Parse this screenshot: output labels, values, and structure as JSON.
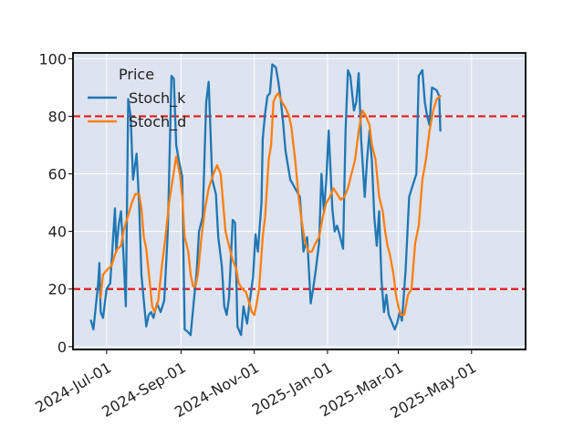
{
  "chart_data": {
    "type": "line",
    "title": "",
    "xlabel": "",
    "ylabel": "",
    "ylim": [
      -1,
      102
    ],
    "xlim": [
      "2024-06-03",
      "2025-06-15"
    ],
    "grid": true,
    "legend": {
      "title": "Price",
      "placement": "top-left"
    },
    "yticks": [
      0,
      20,
      40,
      60,
      80,
      100
    ],
    "xticks": [
      {
        "date": "2024-07-01",
        "label": "2024-Jul-01"
      },
      {
        "date": "2024-09-01",
        "label": "2024-Sep-01"
      },
      {
        "date": "2024-11-01",
        "label": "2024-Nov-01"
      },
      {
        "date": "2025-01-01",
        "label": "2025-Jan-01"
      },
      {
        "date": "2025-03-01",
        "label": "2025-Mar-01"
      },
      {
        "date": "2025-05-01",
        "label": "2025-May-01"
      }
    ],
    "reference_lines": [
      {
        "y": 80,
        "color": "#e31a1c",
        "style": "dashed"
      },
      {
        "y": 20,
        "color": "#e31a1c",
        "style": "dashed"
      }
    ],
    "series": [
      {
        "name": "Stoch_k",
        "color": "#1f77b4",
        "points": [
          [
            "2024-06-18",
            9
          ],
          [
            "2024-06-20",
            6
          ],
          [
            "2024-06-24",
            22
          ],
          [
            "2024-06-25",
            29
          ],
          [
            "2024-06-26",
            12
          ],
          [
            "2024-06-28",
            10
          ],
          [
            "2024-07-01",
            20
          ],
          [
            "2024-07-04",
            22
          ],
          [
            "2024-07-08",
            48
          ],
          [
            "2024-07-09",
            33
          ],
          [
            "2024-07-11",
            42
          ],
          [
            "2024-07-13",
            47
          ],
          [
            "2024-07-15",
            32
          ],
          [
            "2024-07-17",
            14
          ],
          [
            "2024-07-19",
            86
          ],
          [
            "2024-07-21",
            80
          ],
          [
            "2024-07-23",
            58
          ],
          [
            "2024-07-25",
            64
          ],
          [
            "2024-07-26",
            67
          ],
          [
            "2024-07-28",
            50
          ],
          [
            "2024-07-30",
            25
          ],
          [
            "2024-08-01",
            16
          ],
          [
            "2024-08-03",
            7
          ],
          [
            "2024-08-05",
            11
          ],
          [
            "2024-08-07",
            12
          ],
          [
            "2024-08-09",
            10
          ],
          [
            "2024-08-12",
            15
          ],
          [
            "2024-08-15",
            12
          ],
          [
            "2024-08-18",
            16
          ],
          [
            "2024-08-21",
            40
          ],
          [
            "2024-08-24",
            94
          ],
          [
            "2024-08-26",
            93
          ],
          [
            "2024-08-28",
            70
          ],
          [
            "2024-08-30",
            65
          ],
          [
            "2024-09-02",
            59
          ],
          [
            "2024-09-04",
            6
          ],
          [
            "2024-09-07",
            5
          ],
          [
            "2024-09-09",
            4
          ],
          [
            "2024-09-11",
            13
          ],
          [
            "2024-09-14",
            26
          ],
          [
            "2024-09-16",
            40
          ],
          [
            "2024-09-19",
            45
          ],
          [
            "2024-09-22",
            85
          ],
          [
            "2024-09-24",
            92
          ],
          [
            "2024-09-27",
            58
          ],
          [
            "2024-09-30",
            53
          ],
          [
            "2024-10-02",
            38
          ],
          [
            "2024-10-05",
            28
          ],
          [
            "2024-10-07",
            14
          ],
          [
            "2024-10-09",
            11
          ],
          [
            "2024-10-11",
            17
          ],
          [
            "2024-10-14",
            44
          ],
          [
            "2024-10-16",
            43
          ],
          [
            "2024-10-18",
            7
          ],
          [
            "2024-10-21",
            4
          ],
          [
            "2024-10-23",
            14
          ],
          [
            "2024-10-26",
            8
          ],
          [
            "2024-10-28",
            15
          ],
          [
            "2024-10-31",
            24
          ],
          [
            "2024-11-02",
            39
          ],
          [
            "2024-11-04",
            33
          ],
          [
            "2024-11-07",
            50
          ],
          [
            "2024-11-08",
            72
          ],
          [
            "2024-11-10",
            81
          ],
          [
            "2024-11-12",
            87
          ],
          [
            "2024-11-14",
            88
          ],
          [
            "2024-11-16",
            98
          ],
          [
            "2024-11-19",
            97
          ],
          [
            "2024-11-21",
            92
          ],
          [
            "2024-11-23",
            86
          ],
          [
            "2024-11-25",
            78
          ],
          [
            "2024-11-27",
            68
          ],
          [
            "2024-12-01",
            58
          ],
          [
            "2024-12-05",
            55
          ],
          [
            "2024-12-09",
            52
          ],
          [
            "2024-12-12",
            33
          ],
          [
            "2024-12-15",
            38
          ],
          [
            "2024-12-18",
            15
          ],
          [
            "2024-12-20",
            20
          ],
          [
            "2024-12-22",
            26
          ],
          [
            "2024-12-25",
            36
          ],
          [
            "2024-12-27",
            60
          ],
          [
            "2024-12-29",
            47
          ],
          [
            "2024-12-31",
            58
          ],
          [
            "2025-01-02",
            75
          ],
          [
            "2025-01-05",
            48
          ],
          [
            "2025-01-07",
            40
          ],
          [
            "2025-01-09",
            42
          ],
          [
            "2025-01-11",
            39
          ],
          [
            "2025-01-14",
            34
          ],
          [
            "2025-01-16",
            75
          ],
          [
            "2025-01-18",
            96
          ],
          [
            "2025-01-20",
            94
          ],
          [
            "2025-01-23",
            82
          ],
          [
            "2025-01-25",
            85
          ],
          [
            "2025-01-27",
            95
          ],
          [
            "2025-01-29",
            72
          ],
          [
            "2025-02-01",
            52
          ],
          [
            "2025-02-03",
            65
          ],
          [
            "2025-02-05",
            75
          ],
          [
            "2025-02-07",
            64
          ],
          [
            "2025-02-09",
            45
          ],
          [
            "2025-02-11",
            35
          ],
          [
            "2025-02-13",
            47
          ],
          [
            "2025-02-15",
            23
          ],
          [
            "2025-02-17",
            12
          ],
          [
            "2025-02-19",
            18
          ],
          [
            "2025-02-21",
            11
          ],
          [
            "2025-02-24",
            8
          ],
          [
            "2025-02-26",
            6
          ],
          [
            "2025-02-28",
            8
          ],
          [
            "2025-03-02",
            12
          ],
          [
            "2025-03-04",
            9
          ],
          [
            "2025-03-07",
            26
          ],
          [
            "2025-03-10",
            52
          ],
          [
            "2025-03-13",
            56
          ],
          [
            "2025-03-16",
            60
          ],
          [
            "2025-03-18",
            94
          ],
          [
            "2025-03-21",
            96
          ],
          [
            "2025-03-23",
            85
          ],
          [
            "2025-03-25",
            80
          ],
          [
            "2025-03-27",
            77
          ],
          [
            "2025-03-29",
            90
          ],
          [
            "2025-04-02",
            89
          ],
          [
            "2025-04-04",
            87
          ],
          [
            "2025-04-05",
            75
          ]
        ]
      },
      {
        "name": "Stoch_d",
        "color": "#ff7f0e",
        "points": [
          [
            "2024-06-26",
            17
          ],
          [
            "2024-06-28",
            25
          ],
          [
            "2024-07-02",
            27
          ],
          [
            "2024-07-05",
            28
          ],
          [
            "2024-07-08",
            32
          ],
          [
            "2024-07-10",
            34
          ],
          [
            "2024-07-13",
            35
          ],
          [
            "2024-07-15",
            40
          ],
          [
            "2024-07-17",
            43
          ],
          [
            "2024-07-20",
            47
          ],
          [
            "2024-07-22",
            50
          ],
          [
            "2024-07-25",
            53
          ],
          [
            "2024-07-28",
            53
          ],
          [
            "2024-07-30",
            48
          ],
          [
            "2024-08-01",
            38
          ],
          [
            "2024-08-03",
            34
          ],
          [
            "2024-08-06",
            22
          ],
          [
            "2024-08-08",
            14
          ],
          [
            "2024-08-10",
            12
          ],
          [
            "2024-08-13",
            16
          ],
          [
            "2024-08-16",
            28
          ],
          [
            "2024-08-19",
            38
          ],
          [
            "2024-08-22",
            50
          ],
          [
            "2024-08-25",
            58
          ],
          [
            "2024-08-28",
            66
          ],
          [
            "2024-08-31",
            60
          ],
          [
            "2024-09-02",
            52
          ],
          [
            "2024-09-04",
            38
          ],
          [
            "2024-09-07",
            33
          ],
          [
            "2024-09-09",
            25
          ],
          [
            "2024-09-11",
            21
          ],
          [
            "2024-09-13",
            21
          ],
          [
            "2024-09-15",
            25
          ],
          [
            "2024-09-18",
            38
          ],
          [
            "2024-09-21",
            48
          ],
          [
            "2024-09-24",
            55
          ],
          [
            "2024-09-28",
            60
          ],
          [
            "2024-10-01",
            63
          ],
          [
            "2024-10-04",
            60
          ],
          [
            "2024-10-06",
            50
          ],
          [
            "2024-10-08",
            40
          ],
          [
            "2024-10-11",
            35
          ],
          [
            "2024-10-14",
            30
          ],
          [
            "2024-10-17",
            27
          ],
          [
            "2024-10-19",
            22
          ],
          [
            "2024-10-22",
            20
          ],
          [
            "2024-10-25",
            19
          ],
          [
            "2024-10-28",
            15
          ],
          [
            "2024-10-30",
            12
          ],
          [
            "2024-11-01",
            11
          ],
          [
            "2024-11-03",
            15
          ],
          [
            "2024-11-05",
            20
          ],
          [
            "2024-11-08",
            38
          ],
          [
            "2024-11-10",
            45
          ],
          [
            "2024-11-13",
            65
          ],
          [
            "2024-11-15",
            70
          ],
          [
            "2024-11-17",
            85
          ],
          [
            "2024-11-19",
            87
          ],
          [
            "2024-11-21",
            88
          ],
          [
            "2024-11-24",
            85
          ],
          [
            "2024-11-27",
            83
          ],
          [
            "2024-11-30",
            80
          ],
          [
            "2024-12-02",
            76
          ],
          [
            "2024-12-05",
            65
          ],
          [
            "2024-12-08",
            52
          ],
          [
            "2024-12-10",
            45
          ],
          [
            "2024-12-13",
            37
          ],
          [
            "2024-12-16",
            33
          ],
          [
            "2024-12-19",
            33
          ],
          [
            "2024-12-22",
            36
          ],
          [
            "2024-12-25",
            38
          ],
          [
            "2024-12-28",
            45
          ],
          [
            "2024-12-31",
            50
          ],
          [
            "2025-01-03",
            52
          ],
          [
            "2025-01-06",
            55
          ],
          [
            "2025-01-09",
            53
          ],
          [
            "2025-01-12",
            51
          ],
          [
            "2025-01-15",
            52
          ],
          [
            "2025-01-18",
            55
          ],
          [
            "2025-01-21",
            60
          ],
          [
            "2025-01-24",
            65
          ],
          [
            "2025-01-27",
            75
          ],
          [
            "2025-01-30",
            82
          ],
          [
            "2025-02-02",
            80
          ],
          [
            "2025-02-05",
            77
          ],
          [
            "2025-02-07",
            70
          ],
          [
            "2025-02-10",
            65
          ],
          [
            "2025-02-13",
            52
          ],
          [
            "2025-02-16",
            47
          ],
          [
            "2025-02-18",
            40
          ],
          [
            "2025-02-20",
            35
          ],
          [
            "2025-02-22",
            32
          ],
          [
            "2025-02-25",
            25
          ],
          [
            "2025-02-27",
            18
          ],
          [
            "2025-03-01",
            14
          ],
          [
            "2025-03-03",
            11
          ],
          [
            "2025-03-06",
            11
          ],
          [
            "2025-03-09",
            18
          ],
          [
            "2025-03-12",
            20
          ],
          [
            "2025-03-15",
            36
          ],
          [
            "2025-03-18",
            42
          ],
          [
            "2025-03-21",
            58
          ],
          [
            "2025-03-24",
            65
          ],
          [
            "2025-03-27",
            75
          ],
          [
            "2025-03-30",
            82
          ],
          [
            "2025-04-02",
            86
          ],
          [
            "2025-04-05",
            87
          ]
        ]
      }
    ]
  }
}
